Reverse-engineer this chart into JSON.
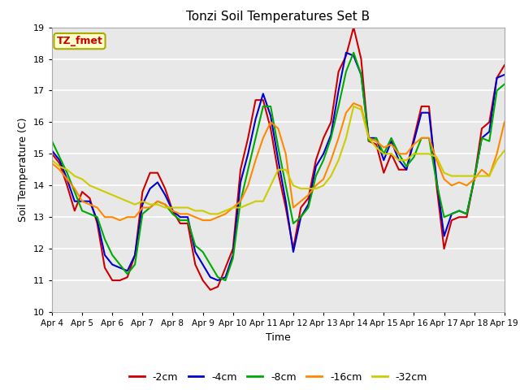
{
  "title": "Tonzi Soil Temperatures Set B",
  "xlabel": "Time",
  "ylabel": "Soil Temperature (C)",
  "ylim": [
    10.0,
    19.0
  ],
  "yticks": [
    10.0,
    11.0,
    12.0,
    13.0,
    14.0,
    15.0,
    16.0,
    17.0,
    18.0,
    19.0
  ],
  "xtick_labels": [
    "Apr 4",
    "Apr 5",
    "Apr 6",
    "Apr 7",
    "Apr 8",
    "Apr 9",
    "Apr 10",
    "Apr 11",
    "Apr 12",
    "Apr 13",
    "Apr 14",
    "Apr 15",
    "Apr 16",
    "Apr 17",
    "Apr 18",
    "Apr 19"
  ],
  "legend_label": "TZ_fmet",
  "legend_bg": "#ffffcc",
  "legend_border": "#aaaa00",
  "fig_bg": "#ffffff",
  "plot_bg": "#e8e8e8",
  "grid_color": "#ffffff",
  "series_order": [
    "-2cm",
    "-4cm",
    "-8cm",
    "-16cm",
    "-32cm"
  ],
  "series": {
    "-2cm": {
      "color": "#cc0000",
      "lw": 1.5
    },
    "-4cm": {
      "color": "#0000cc",
      "lw": 1.5
    },
    "-8cm": {
      "color": "#00aa00",
      "lw": 1.5
    },
    "-16cm": {
      "color": "#ff8800",
      "lw": 1.5
    },
    "-32cm": {
      "color": "#cccc00",
      "lw": 1.5
    }
  },
  "x_vals": [
    0,
    0.25,
    0.5,
    0.75,
    1,
    1.25,
    1.5,
    1.75,
    2,
    2.25,
    2.5,
    2.75,
    3,
    3.25,
    3.5,
    3.75,
    4,
    4.25,
    4.5,
    4.75,
    5,
    5.25,
    5.5,
    5.75,
    6,
    6.25,
    6.5,
    6.75,
    7,
    7.25,
    7.5,
    7.75,
    8,
    8.25,
    8.5,
    8.75,
    9,
    9.25,
    9.5,
    9.75,
    10,
    10.25,
    10.5,
    10.75,
    11,
    11.25,
    11.5,
    11.75,
    12,
    12.25,
    12.5,
    12.75,
    13,
    13.25,
    13.5,
    13.75,
    14,
    14.25,
    14.5,
    14.75,
    15
  ],
  "y_2cm": [
    15.0,
    14.7,
    14.0,
    13.2,
    13.8,
    13.6,
    12.8,
    11.4,
    11.0,
    11.0,
    11.1,
    11.8,
    13.8,
    14.4,
    14.4,
    13.9,
    13.2,
    12.8,
    12.8,
    11.5,
    11.0,
    10.7,
    10.8,
    11.4,
    12.0,
    14.5,
    15.5,
    16.7,
    16.7,
    15.8,
    14.4,
    13.3,
    12.0,
    13.3,
    13.6,
    14.8,
    15.5,
    16.0,
    17.6,
    18.1,
    19.0,
    18.0,
    15.4,
    15.3,
    14.4,
    15.0,
    14.5,
    14.5,
    15.5,
    16.5,
    16.5,
    14.0,
    12.0,
    12.9,
    13.0,
    13.0,
    14.2,
    15.8,
    16.0,
    17.4,
    17.8
  ],
  "y_4cm": [
    15.1,
    14.8,
    14.2,
    13.5,
    13.5,
    13.5,
    12.9,
    11.8,
    11.5,
    11.4,
    11.3,
    11.8,
    13.4,
    13.9,
    14.1,
    13.7,
    13.2,
    13.0,
    13.0,
    11.9,
    11.5,
    11.1,
    11.0,
    11.1,
    11.8,
    14.1,
    15.0,
    16.1,
    16.9,
    16.2,
    14.8,
    13.5,
    11.9,
    13.0,
    13.4,
    14.6,
    15.0,
    15.6,
    17.0,
    18.2,
    18.1,
    17.5,
    15.5,
    15.5,
    14.8,
    15.4,
    14.8,
    14.5,
    15.4,
    16.3,
    16.3,
    14.2,
    12.4,
    13.1,
    13.2,
    13.1,
    14.2,
    15.5,
    15.7,
    17.4,
    17.5
  ],
  "y_8cm": [
    15.4,
    14.9,
    14.4,
    13.8,
    13.2,
    13.1,
    13.0,
    12.3,
    11.8,
    11.5,
    11.2,
    11.5,
    13.1,
    13.3,
    13.5,
    13.4,
    13.1,
    12.9,
    12.9,
    12.1,
    11.9,
    11.5,
    11.1,
    11.0,
    11.7,
    13.5,
    14.5,
    15.5,
    16.5,
    16.5,
    15.2,
    14.0,
    12.8,
    13.0,
    13.3,
    14.3,
    14.8,
    15.5,
    16.5,
    17.6,
    18.2,
    17.5,
    15.4,
    15.5,
    15.0,
    15.5,
    15.0,
    14.6,
    14.9,
    15.5,
    15.5,
    14.1,
    13.0,
    13.1,
    13.2,
    13.1,
    14.2,
    15.5,
    15.4,
    17.0,
    17.2
  ],
  "y_16cm": [
    14.7,
    14.5,
    14.2,
    13.9,
    13.5,
    13.4,
    13.3,
    13.0,
    13.0,
    12.9,
    13.0,
    13.0,
    13.3,
    13.3,
    13.5,
    13.4,
    13.2,
    13.1,
    13.1,
    13.0,
    12.9,
    12.9,
    13.0,
    13.1,
    13.3,
    13.5,
    14.0,
    14.8,
    15.5,
    16.0,
    15.8,
    15.0,
    13.3,
    13.5,
    13.7,
    14.0,
    14.2,
    14.8,
    15.5,
    16.3,
    16.6,
    16.5,
    15.5,
    15.4,
    15.2,
    15.3,
    15.0,
    15.0,
    15.3,
    15.5,
    15.5,
    14.8,
    14.2,
    14.0,
    14.1,
    14.0,
    14.2,
    14.5,
    14.3,
    15.0,
    16.0
  ],
  "y_32cm": [
    14.8,
    14.6,
    14.5,
    14.3,
    14.2,
    14.0,
    13.9,
    13.8,
    13.7,
    13.6,
    13.5,
    13.4,
    13.5,
    13.4,
    13.4,
    13.3,
    13.3,
    13.3,
    13.3,
    13.2,
    13.2,
    13.1,
    13.1,
    13.2,
    13.3,
    13.3,
    13.4,
    13.5,
    13.5,
    14.0,
    14.5,
    14.5,
    14.0,
    13.9,
    13.9,
    13.9,
    14.0,
    14.3,
    14.8,
    15.5,
    16.5,
    16.4,
    15.5,
    15.2,
    15.0,
    15.0,
    14.8,
    14.8,
    15.0,
    15.0,
    15.0,
    14.9,
    14.4,
    14.3,
    14.3,
    14.3,
    14.3,
    14.3,
    14.3,
    14.8,
    15.1
  ]
}
